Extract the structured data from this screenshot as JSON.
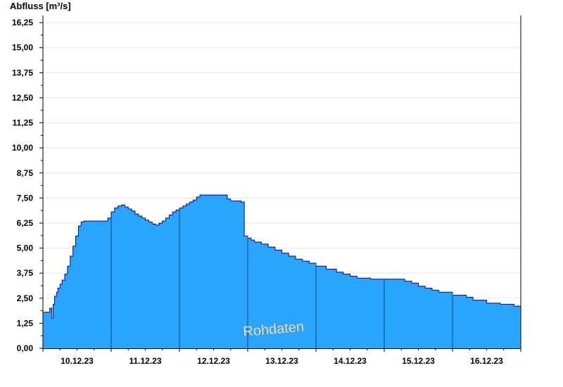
{
  "chart_data": {
    "type": "area",
    "ylabel": "Abfluss [m³/s]",
    "ylim": [
      0,
      16.5
    ],
    "y_ticks": [
      "0,00",
      "1,25",
      "2,50",
      "3,75",
      "5,00",
      "6,25",
      "7,50",
      "8,75",
      "10,00",
      "11,25",
      "12,50",
      "13,75",
      "15,00",
      "16,25"
    ],
    "y_tick_values": [
      0,
      1.25,
      2.5,
      3.75,
      5,
      6.25,
      7.5,
      8.75,
      10,
      11.25,
      12.5,
      13.75,
      15,
      16.25
    ],
    "x_ticks": [
      "10.12.23",
      "11.12.23",
      "12.12.23",
      "13.12.23",
      "14.12.23",
      "15.12.23",
      "16.12.23"
    ],
    "x_tick_values": [
      0.5,
      1.5,
      2.5,
      3.5,
      4.5,
      5.5,
      6.5
    ],
    "xlim": [
      0,
      7
    ],
    "x_unit": "days from start of 10.12.23",
    "day_boundaries": [
      1,
      2,
      3,
      4,
      5,
      6
    ],
    "grid": true,
    "watermark": "Rohdaten",
    "fill_color": "#29a6fc",
    "line_color": "#0000a0",
    "series": [
      {
        "x": [
          0,
          0.1,
          0.13,
          0.15,
          0.17,
          0.2,
          0.22,
          0.25,
          0.28,
          0.32,
          0.36,
          0.4,
          0.44,
          0.48,
          0.52,
          0.56,
          0.6,
          0.64,
          0.67,
          0.7,
          0.95,
          1.0,
          1.05,
          1.1,
          1.15,
          1.2,
          1.25,
          1.3,
          1.35,
          1.4,
          1.45,
          1.5,
          1.55,
          1.6,
          1.65,
          1.7,
          1.75,
          1.8,
          1.85,
          1.9,
          1.95,
          2.0,
          2.05,
          2.1,
          2.15,
          2.2,
          2.25,
          2.3,
          2.35,
          2.4,
          2.7,
          2.75,
          2.9,
          2.95,
          3.0,
          3.05,
          3.1,
          3.2,
          3.3,
          3.4,
          3.5,
          3.6,
          3.7,
          3.8,
          3.9,
          4.0,
          4.15,
          4.3,
          4.4,
          4.5,
          4.6,
          4.7,
          4.8,
          5.0,
          5.3,
          5.4,
          5.5,
          5.6,
          5.7,
          5.8,
          6.0,
          6.2,
          6.3,
          6.5,
          6.7,
          6.9,
          7.0
        ],
        "y": [
          1.8,
          2.0,
          1.5,
          2.2,
          2.6,
          2.8,
          3.0,
          3.2,
          3.4,
          3.7,
          4.1,
          4.6,
          5.1,
          5.6,
          6.1,
          6.3,
          6.35,
          6.35,
          6.35,
          6.35,
          6.5,
          6.8,
          7.0,
          7.1,
          7.15,
          7.05,
          6.95,
          6.85,
          6.7,
          6.6,
          6.5,
          6.4,
          6.3,
          6.2,
          6.15,
          6.25,
          6.35,
          6.5,
          6.65,
          6.8,
          6.9,
          7.0,
          7.1,
          7.2,
          7.3,
          7.4,
          7.55,
          7.65,
          7.65,
          7.65,
          7.45,
          7.35,
          7.3,
          5.6,
          5.5,
          5.4,
          5.3,
          5.2,
          5.05,
          4.9,
          4.75,
          4.6,
          4.45,
          4.35,
          4.25,
          4.1,
          3.95,
          3.8,
          3.7,
          3.6,
          3.5,
          3.5,
          3.45,
          3.45,
          3.35,
          3.25,
          3.1,
          3.0,
          2.9,
          2.8,
          2.65,
          2.55,
          2.4,
          2.25,
          2.2,
          2.1,
          2.0
        ]
      }
    ]
  }
}
